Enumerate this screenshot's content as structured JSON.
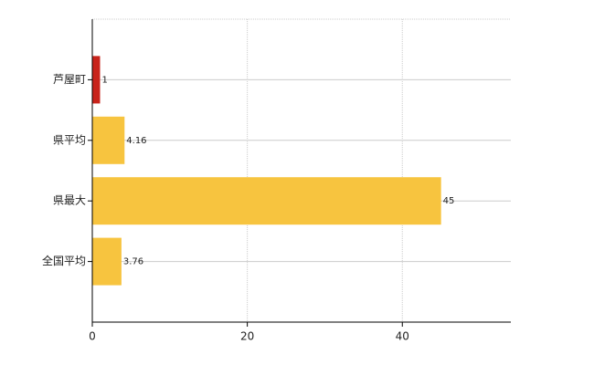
{
  "chart_data": {
    "type": "bar",
    "orientation": "horizontal",
    "categories": [
      "芦屋町",
      "県平均",
      "県最大",
      "全国平均"
    ],
    "values": [
      1,
      4.16,
      45,
      3.76
    ],
    "colors": [
      "#c8231b",
      "#f7c43f",
      "#f7c43f",
      "#f7c43f"
    ],
    "xlim": [
      0,
      54
    ],
    "xticks": [
      0,
      20,
      40
    ],
    "grid": true
  }
}
